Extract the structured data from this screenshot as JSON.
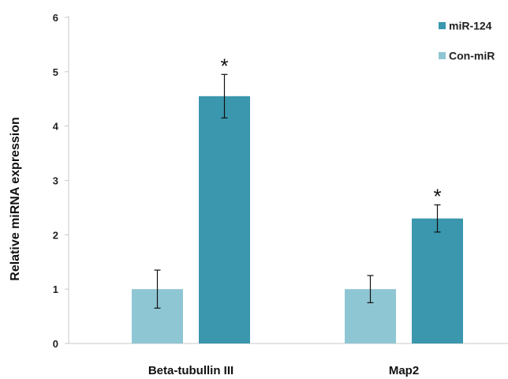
{
  "chart_data": {
    "type": "bar",
    "categories": [
      "Beta-tubullin III",
      "Map2"
    ],
    "series": [
      {
        "name": "Con-miR",
        "color": "#8fc6d4",
        "values": [
          1.0,
          1.0
        ],
        "errors": [
          0.35,
          0.25
        ]
      },
      {
        "name": "miR-124",
        "color": "#3a97ad",
        "values": [
          4.55,
          2.3
        ],
        "errors": [
          0.4,
          0.25
        ]
      }
    ],
    "annotations": [
      {
        "category": "Beta-tubullin III",
        "series": "miR-124",
        "text": "*"
      },
      {
        "category": "Map2",
        "series": "miR-124",
        "text": "*"
      }
    ],
    "ylabel": "Relative miRNA expression",
    "xlabel": "",
    "ylim": [
      0,
      6
    ],
    "yticks": [
      0,
      1,
      2,
      3,
      4,
      5,
      6
    ],
    "legend": {
      "placement": "top-right",
      "entries": [
        "miR-124",
        "Con-miR"
      ]
    },
    "grid": false
  }
}
